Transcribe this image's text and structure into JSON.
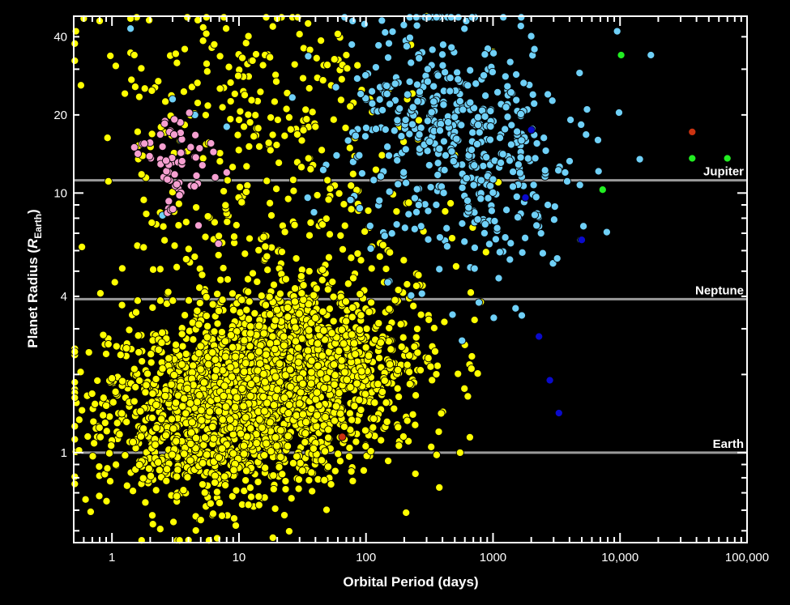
{
  "chart_data": {
    "type": "scatter",
    "title": "",
    "xlabel": "Orbital Period (days)",
    "ylabel_main": "Planet Radius (",
    "ylabel_symbol": "R",
    "ylabel_sub": "Earth",
    "ylabel_close": ")",
    "x_scale": "log",
    "y_scale": "log",
    "xlim": [
      0.5,
      100000
    ],
    "ylim": [
      0.45,
      48
    ],
    "x_ticks": [
      {
        "value": 1,
        "label": "1"
      },
      {
        "value": 10,
        "label": "10"
      },
      {
        "value": 100,
        "label": "100"
      },
      {
        "value": 1000,
        "label": "1000"
      },
      {
        "value": 10000,
        "label": "10,000"
      },
      {
        "value": 100000,
        "label": "100,000"
      }
    ],
    "y_ticks": [
      {
        "value": 1,
        "label": "1"
      },
      {
        "value": 4,
        "label": "4"
      },
      {
        "value": 10,
        "label": "10"
      },
      {
        "value": 20,
        "label": "20"
      },
      {
        "value": 40,
        "label": "40"
      }
    ],
    "reference_lines": [
      {
        "label": "Jupiter",
        "y": 11.2,
        "color": "#9a9a9a"
      },
      {
        "label": "Neptune",
        "y": 3.9,
        "color": "#9a9a9a"
      },
      {
        "label": "Earth",
        "y": 1.0,
        "color": "#9a9a9a"
      }
    ],
    "grid": false,
    "legend": "none",
    "series": [
      {
        "color": "#ffff00",
        "stroke": "#000000",
        "clusters": [
          {
            "center": [
              12,
              1.6
            ],
            "spread": [
              0.55,
              0.17
            ],
            "count": 1300
          },
          {
            "center": [
              35,
              2.3
            ],
            "spread": [
              0.45,
              0.14
            ],
            "count": 650
          },
          {
            "center": [
              4,
              1.2
            ],
            "spread": [
              0.35,
              0.15
            ],
            "count": 350
          },
          {
            "center": [
              25,
              7
            ],
            "spread": [
              0.6,
              0.28
            ],
            "count": 260
          },
          {
            "center": [
              10,
              25
            ],
            "spread": [
              0.55,
              0.2
            ],
            "count": 150
          }
        ],
        "values": [
          [
            0.52,
            42
          ],
          [
            0.57,
            26
          ],
          [
            0.6,
            47
          ],
          [
            0.8,
            46
          ],
          [
            1.4,
            47
          ],
          [
            1.5,
            34
          ],
          [
            0.58,
            6.2
          ],
          [
            0.62,
            0.66
          ],
          [
            0.55,
            1.02
          ],
          [
            4.0,
            0.46
          ],
          [
            18.5,
            0.47
          ],
          [
            2.1,
            0.53
          ],
          [
            5.0,
            0.55
          ],
          [
            550,
            1.0
          ],
          [
            360,
            0.98
          ],
          [
            800,
            3.8
          ],
          [
            600,
            2.6
          ],
          [
            1000,
            35
          ],
          [
            1100,
            11
          ],
          [
            300,
            48
          ],
          [
            70,
            34
          ],
          [
            200,
            12
          ],
          [
            420,
            8.5
          ],
          [
            500,
            14
          ],
          [
            150,
            25
          ],
          [
            60,
            41
          ],
          [
            40,
            18
          ],
          [
            35,
            45
          ],
          [
            20,
            47
          ],
          [
            18,
            8.2
          ],
          [
            0.9,
            2.4
          ],
          [
            1.1,
            1.3
          ],
          [
            1.2,
            3.7
          ],
          [
            1.5,
            2.1
          ]
        ]
      },
      {
        "color": "#6fd0f7",
        "stroke": "#000000",
        "clusters": [
          {
            "center": [
              550,
              15
            ],
            "spread": [
              0.42,
              0.22
            ],
            "count": 330
          },
          {
            "center": [
              250,
              25
            ],
            "spread": [
              0.35,
              0.18
            ],
            "count": 100
          },
          {
            "center": [
              1200,
              10
            ],
            "spread": [
              0.3,
              0.2
            ],
            "count": 60
          }
        ],
        "values": [
          [
            1.4,
            43
          ],
          [
            4.5,
            20
          ],
          [
            3.5,
            16
          ],
          [
            8,
            18
          ],
          [
            3,
            23
          ],
          [
            2.5,
            8.2
          ],
          [
            9500,
            42
          ],
          [
            17500,
            34
          ],
          [
            14300,
            13.5
          ],
          [
            4900,
            6.6
          ],
          [
            3700,
            12
          ],
          [
            6700,
            16
          ],
          [
            5500,
            21
          ],
          [
            2700,
            9
          ],
          [
            3200,
            5.6
          ],
          [
            1700,
            5.9
          ],
          [
            2200,
            7.5
          ],
          [
            2700,
            24
          ],
          [
            4800,
            29
          ],
          [
            570,
            2.7
          ],
          [
            480,
            3.4
          ]
        ]
      },
      {
        "color": "#f59fd0",
        "stroke": "#000000",
        "clusters": [
          {
            "center": [
              3.2,
              12.8
            ],
            "spread": [
              0.13,
              0.1
            ],
            "count": 55
          }
        ],
        "values": [
          [
            1.5,
            15
          ],
          [
            1.8,
            15.5
          ],
          [
            2.4,
            16.8
          ],
          [
            2.6,
            18.5
          ],
          [
            3.1,
            19.2
          ],
          [
            3.4,
            9.8
          ],
          [
            2.8,
            9.3
          ],
          [
            4.8,
            7.5
          ],
          [
            6.5,
            11.5
          ],
          [
            8,
            12
          ]
        ]
      },
      {
        "color": "#22ee22",
        "stroke": "#000000",
        "values": [
          [
            10200,
            34
          ],
          [
            7300,
            10.3
          ],
          [
            37000,
            13.6
          ],
          [
            70000,
            13.6
          ]
        ]
      },
      {
        "color": "#0a0acc",
        "stroke": "#000000",
        "values": [
          [
            2000,
            17.5
          ],
          [
            1800,
            9.6
          ],
          [
            5000,
            6.6
          ],
          [
            2300,
            2.8
          ],
          [
            2800,
            1.9
          ],
          [
            3300,
            1.42
          ]
        ]
      },
      {
        "color": "#cc3311",
        "stroke": "#000000",
        "values": [
          [
            37000,
            17.2
          ],
          [
            65,
            1.15
          ]
        ]
      }
    ]
  }
}
